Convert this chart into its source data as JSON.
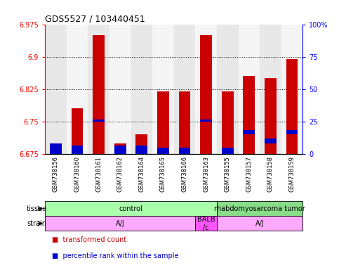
{
  "title": "GDS5527 / 103440451",
  "samples": [
    "GSM738156",
    "GSM738160",
    "GSM738161",
    "GSM738162",
    "GSM738164",
    "GSM738165",
    "GSM738166",
    "GSM738163",
    "GSM738155",
    "GSM738157",
    "GSM738158",
    "GSM738159"
  ],
  "transformed_count": [
    6.7,
    6.78,
    6.95,
    6.7,
    6.72,
    6.82,
    6.82,
    6.95,
    6.82,
    6.855,
    6.85,
    6.895
  ],
  "percentile_bottom": [
    6.675,
    6.675,
    6.75,
    6.675,
    6.675,
    6.675,
    6.675,
    6.75,
    6.675,
    6.72,
    6.7,
    6.72
  ],
  "percentile_top": [
    6.7,
    6.695,
    6.755,
    6.695,
    6.695,
    6.69,
    6.69,
    6.755,
    6.69,
    6.73,
    6.71,
    6.73
  ],
  "ymin": 6.675,
  "ymax": 6.975,
  "yticks": [
    6.675,
    6.75,
    6.825,
    6.9,
    6.975
  ],
  "y2ticks_labels": [
    "0",
    "25",
    "50",
    "75",
    "100%"
  ],
  "y2ticks_vals": [
    0,
    25,
    50,
    75,
    100
  ],
  "bar_color": "#cc0000",
  "blue_color": "#0000cc",
  "tissue_groups": [
    {
      "label": "control",
      "start": 0,
      "end": 7,
      "color": "#aaffaa"
    },
    {
      "label": "rhabdomyosarcoma tumor",
      "start": 8,
      "end": 11,
      "color": "#88dd88"
    }
  ],
  "strain_groups": [
    {
      "label": "A/J",
      "start": 0,
      "end": 6,
      "color": "#ffaaff"
    },
    {
      "label": "BALB\n/c",
      "start": 7,
      "end": 7,
      "color": "#ff55ff"
    },
    {
      "label": "A/J",
      "start": 8,
      "end": 11,
      "color": "#ffaaff"
    }
  ],
  "legend_items": [
    {
      "label": "transformed count",
      "color": "#cc0000"
    },
    {
      "label": "percentile rank within the sample",
      "color": "#0000cc"
    }
  ],
  "bar_width": 0.55,
  "tissue_label": "tissue",
  "strain_label": "strain",
  "col_bg_even": "#e8e8e8",
  "col_bg_odd": "#f5f5f5"
}
